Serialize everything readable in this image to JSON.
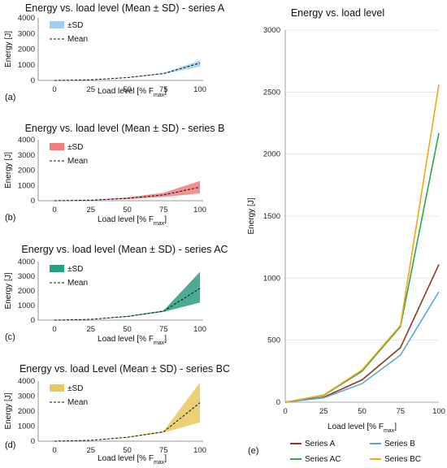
{
  "chart_data": [
    {
      "panel": "(a)",
      "type": "line",
      "title": "Energy vs. load level (Mean ± SD) - series A",
      "xlabel": "Load level [% F",
      "xlabel_sub": "max",
      "xlabel_end": "]",
      "ylabel": "Energy [J]",
      "x": [
        0,
        25,
        50,
        75,
        100
      ],
      "x_ticks": [
        "0",
        "25",
        "50",
        "75",
        "100"
      ],
      "y_ticks": [
        "0",
        "1000",
        "2000",
        "3000",
        "4000"
      ],
      "ylim": [
        0,
        4000
      ],
      "mean": [
        0,
        40,
        180,
        440,
        1110
      ],
      "lower": [
        0,
        35,
        160,
        400,
        880
      ],
      "upper": [
        0,
        45,
        200,
        480,
        1280
      ],
      "band_color": "#9ecff0",
      "legend": {
        "sd_label": "±SD",
        "mean_label": "Mean"
      }
    },
    {
      "panel": "(b)",
      "type": "line",
      "title": "Energy vs. load level (Mean ± SD) - series B",
      "xlabel": "Load level [% F",
      "xlabel_sub": "max",
      "xlabel_end": "]",
      "ylabel": "Energy [J]",
      "x": [
        0,
        25,
        50,
        75,
        100
      ],
      "x_ticks": [
        "0",
        "25",
        "50",
        "75",
        "100"
      ],
      "y_ticks": [
        "0",
        "1000",
        "2000",
        "3000",
        "4000"
      ],
      "ylim": [
        0,
        4000
      ],
      "mean": [
        0,
        35,
        150,
        380,
        890
      ],
      "lower": [
        0,
        25,
        100,
        250,
        480
      ],
      "upper": [
        0,
        50,
        220,
        520,
        1300
      ],
      "band_color": "#f07e7e",
      "legend": {
        "sd_label": "±SD",
        "mean_label": "Mean"
      }
    },
    {
      "panel": "(c)",
      "type": "line",
      "title": "Energy vs. load level (Mean ± SD) - series AC",
      "xlabel": "Load level [% F",
      "xlabel_sub": "max",
      "xlabel_end": "]",
      "ylabel": "Energy [J]",
      "x": [
        0,
        25,
        50,
        75,
        100
      ],
      "x_ticks": [
        "0",
        "25",
        "50",
        "75",
        "100"
      ],
      "y_ticks": [
        "0",
        "1000",
        "2000",
        "3000",
        "4000"
      ],
      "ylim": [
        0,
        4000
      ],
      "mean": [
        0,
        55,
        250,
        610,
        2170
      ],
      "lower": [
        0,
        48,
        220,
        560,
        1200
      ],
      "upper": [
        0,
        62,
        280,
        660,
        3300
      ],
      "band_color": "#2a9e82",
      "legend": {
        "sd_label": "±SD",
        "mean_label": "Mean"
      }
    },
    {
      "panel": "(d)",
      "type": "line",
      "title": "Energy vs. load Level (Mean ± SD) - series BC",
      "xlabel": "Load level [% F",
      "xlabel_sub": "max",
      "xlabel_end": "]",
      "ylabel": "Energy [J]",
      "x": [
        0,
        25,
        50,
        75,
        100
      ],
      "x_ticks": [
        "0",
        "25",
        "50",
        "75",
        "100"
      ],
      "y_ticks": [
        "0",
        "1000",
        "2000",
        "3000",
        "4000"
      ],
      "ylim": [
        0,
        4000
      ],
      "mean": [
        0,
        58,
        260,
        620,
        2560
      ],
      "lower": [
        0,
        50,
        230,
        570,
        1250
      ],
      "upper": [
        0,
        66,
        290,
        680,
        3900
      ],
      "band_color": "#e8c860",
      "legend": {
        "sd_label": "±SD",
        "mean_label": "Mean"
      }
    },
    {
      "panel": "(e)",
      "type": "line",
      "title": "Energy vs. load level",
      "xlabel": "Load level [% F",
      "xlabel_sub": "max",
      "xlabel_end": "]",
      "ylabel": "Energy [J]",
      "x": [
        0,
        25,
        50,
        75,
        100
      ],
      "x_ticks": [
        "0",
        "25",
        "50",
        "75",
        "100"
      ],
      "y_ticks": [
        "0",
        "500",
        "1000",
        "1500",
        "2000",
        "2500",
        "3000"
      ],
      "ylim": [
        0,
        3000
      ],
      "legend_position": "bottom",
      "series": [
        {
          "name": "Series A",
          "color": "#8b3a1e",
          "values": [
            0,
            40,
            180,
            440,
            1110
          ]
        },
        {
          "name": "Series B",
          "color": "#5aa5dc",
          "values": [
            0,
            35,
            150,
            380,
            890
          ]
        },
        {
          "name": "Series AC",
          "color": "#2ea84a",
          "values": [
            0,
            55,
            250,
            610,
            2170
          ]
        },
        {
          "name": "Series BC",
          "color": "#f0a818",
          "values": [
            0,
            58,
            260,
            620,
            2560
          ]
        }
      ]
    }
  ]
}
